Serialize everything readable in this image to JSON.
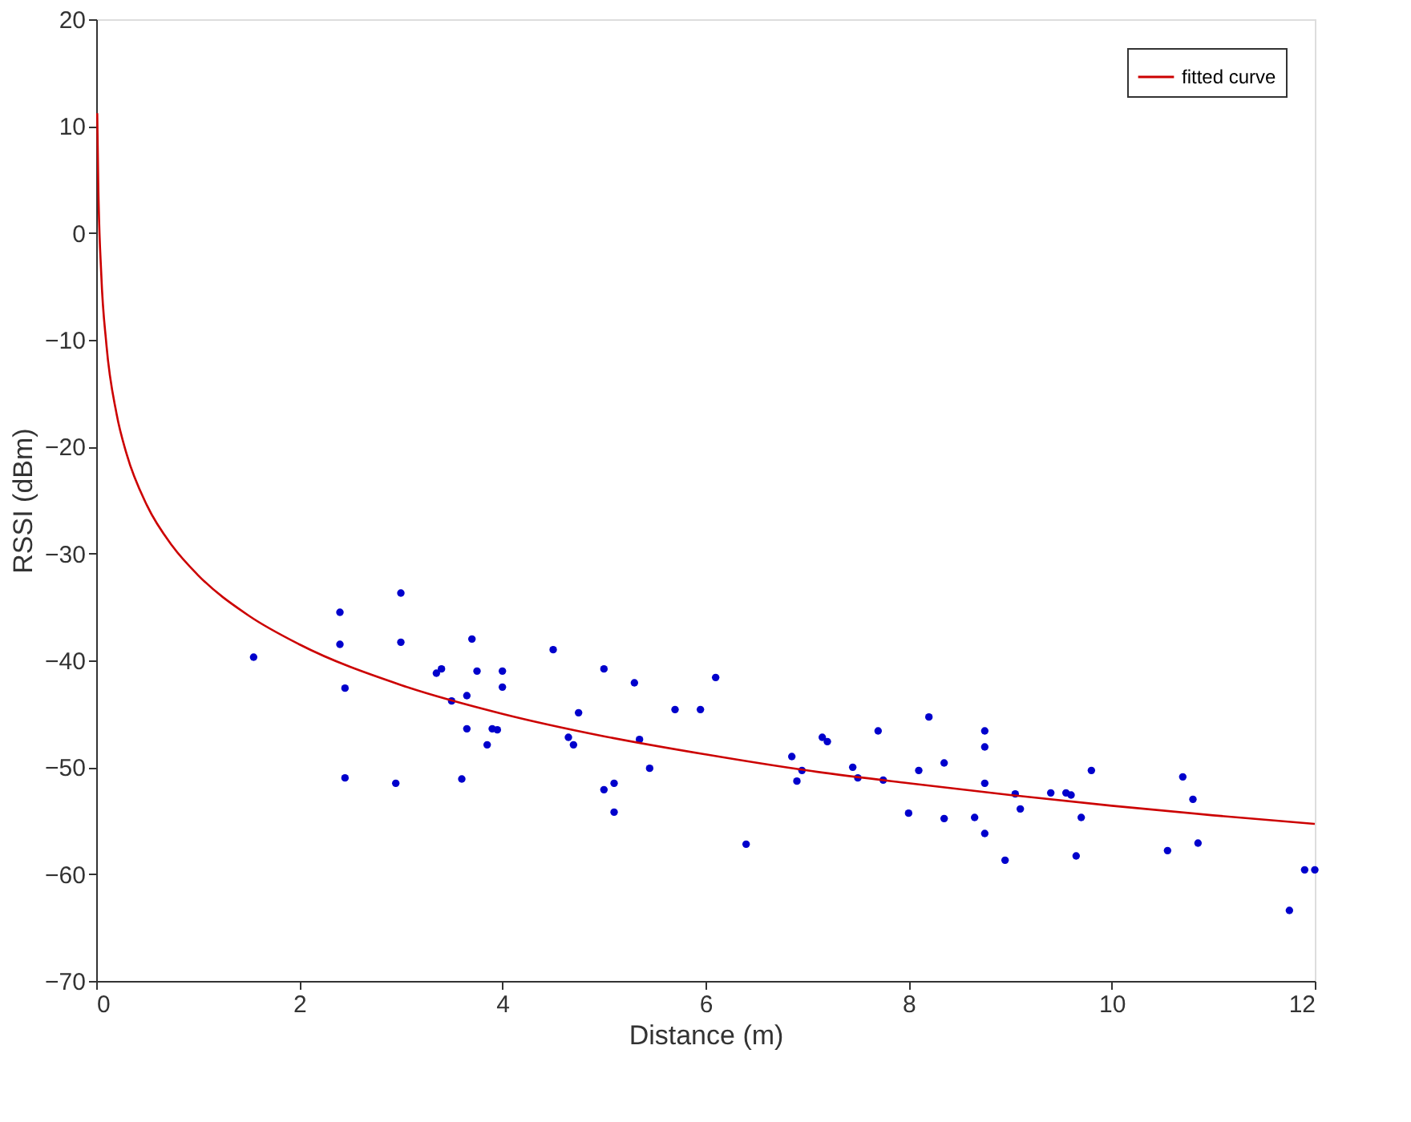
{
  "chart_data": {
    "type": "scatter",
    "xlabel": "Distance (m)",
    "ylabel": "RSSI (dBm)",
    "xlim": [
      0,
      12
    ],
    "xticks": [
      0,
      2,
      4,
      6,
      8,
      10,
      12
    ],
    "ylim": [
      -70,
      20
    ],
    "yticks": [
      -70,
      -60,
      -50,
      -40,
      -30,
      -20,
      -10,
      0,
      10,
      20
    ],
    "grid": false,
    "legend": "top right",
    "marker": "circle",
    "series": [
      {
        "color": "#0000cc",
        "x": [
          1.55,
          2.4,
          2.4,
          2.45,
          2.45,
          2.95,
          3.0,
          3.0,
          3.35,
          3.4,
          3.5,
          3.6,
          3.65,
          3.65,
          3.7,
          3.75,
          3.85,
          3.9,
          3.95,
          4.0,
          4.0,
          4.5,
          4.65,
          4.7,
          4.75,
          5.0,
          5.0,
          5.1,
          5.1,
          5.3,
          5.35,
          5.45,
          5.7,
          5.95,
          6.1,
          6.4,
          6.85,
          6.9,
          6.95,
          7.15,
          7.2,
          7.45,
          7.5,
          7.7,
          7.75,
          8.0,
          8.1,
          8.2,
          8.35,
          8.35,
          8.65,
          8.75,
          8.75,
          8.75,
          8.75,
          8.95,
          9.05,
          9.1,
          9.4,
          9.55,
          9.6,
          9.65,
          9.7,
          9.8,
          10.55,
          10.7,
          10.8,
          10.85,
          11.75,
          11.9,
          12.0
        ],
        "values": [
          -39.7,
          -35.5,
          -38.5,
          -42.6,
          -51,
          -51.5,
          -33.7,
          -38.3,
          -41.2,
          -40.8,
          -43.8,
          -51.1,
          -46.4,
          -43.3,
          -38,
          -41,
          -47.9,
          -46.4,
          -46.5,
          -41,
          -42.5,
          -39,
          -47.2,
          -47.9,
          -44.9,
          -40.8,
          -52.1,
          -51.5,
          -54.2,
          -42.1,
          -47.4,
          -50.1,
          -44.6,
          -44.6,
          -41.6,
          -57.2,
          -49,
          -51.3,
          -50.3,
          -47.2,
          -47.6,
          -50,
          -51,
          -46.6,
          -51.2,
          -54.3,
          -50.3,
          -45.3,
          -49.6,
          -54.8,
          -54.7,
          -46.6,
          -48.1,
          -51.5,
          -56.2,
          -58.7,
          -52.5,
          -53.9,
          -52.4,
          -52.4,
          -52.6,
          -58.3,
          -54.7,
          -50.3,
          -57.8,
          -50.9,
          -53,
          -57.1,
          -63.4,
          -59.6,
          -59.6
        ]
      },
      {
        "type": "line",
        "name": "fitted curve",
        "color": "#cc0000",
        "marker": "none",
        "line_style": "solid",
        "x": [
          0.01,
          0.02,
          0.05,
          0.1,
          0.2,
          0.3,
          0.5,
          0.75,
          1,
          1.5,
          2,
          3,
          4,
          5,
          6,
          7,
          8,
          9,
          10,
          11,
          12
        ],
        "values": [
          11.2,
          4.7,
          -3.9,
          -10.4,
          -16.9,
          -20.7,
          -25.5,
          -29.3,
          -32,
          -35.8,
          -38.5,
          -42.3,
          -45.0,
          -47.1,
          -48.8,
          -50.3,
          -51.5,
          -52.6,
          -53.6,
          -54.5,
          -55.3
        ]
      }
    ]
  }
}
